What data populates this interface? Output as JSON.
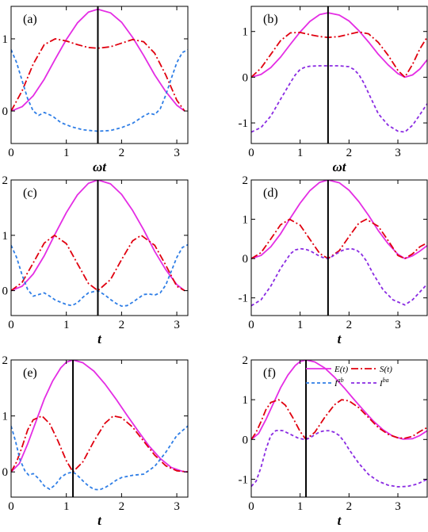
{
  "colors": {
    "E": "#e42de4",
    "S": "#e0000f",
    "Iab": "#2f7ee6",
    "Iba": "#8a2be2",
    "frame": "#000000",
    "marker": "#000000"
  },
  "legend": {
    "placement": "top-right of panel (f)",
    "entries": [
      {
        "series": "E",
        "label": "E(t)",
        "dash": "solid"
      },
      {
        "series": "S",
        "label": "S(t)",
        "dash": "dashdot"
      },
      {
        "series": "Iab",
        "label": "I^ab",
        "label_base": "I",
        "label_sup": "ab",
        "dash": "dashed"
      },
      {
        "series": "Iba",
        "label": "I^ba",
        "label_base": "I",
        "label_sup": "ba",
        "dash": "dashed"
      }
    ]
  },
  "chart_data": [
    {
      "type": "line",
      "label": "(a)",
      "xlabel": "ωt",
      "xlim": [
        0,
        3.2
      ],
      "ylim": [
        -0.45,
        1.45
      ],
      "xticks": [
        0,
        1,
        2,
        3
      ],
      "yticks": [
        0,
        1
      ],
      "marker_x": 1.571,
      "series": [
        {
          "key": "E",
          "x": [
            0,
            0.2,
            0.4,
            0.6,
            0.8,
            1.0,
            1.2,
            1.4,
            1.571,
            1.8,
            2.0,
            2.2,
            2.4,
            2.6,
            2.8,
            3.0,
            3.142
          ],
          "y": [
            0,
            0.06,
            0.21,
            0.44,
            0.72,
            0.99,
            1.22,
            1.37,
            1.41,
            1.36,
            1.23,
            1.02,
            0.77,
            0.5,
            0.27,
            0.08,
            0
          ]
        },
        {
          "key": "S",
          "x": [
            0,
            0.2,
            0.4,
            0.6,
            0.8,
            1.0,
            1.2,
            1.4,
            1.571,
            1.8,
            2.0,
            2.2,
            2.4,
            2.6,
            2.8,
            3.0,
            3.142
          ],
          "y": [
            0,
            0.28,
            0.65,
            0.92,
            1.0,
            0.97,
            0.92,
            0.88,
            0.87,
            0.89,
            0.94,
            0.99,
            0.96,
            0.8,
            0.5,
            0.15,
            0
          ]
        },
        {
          "key": "Iab",
          "x": [
            0,
            0.1,
            0.2,
            0.3,
            0.4,
            0.5,
            0.6,
            0.75,
            0.9,
            1.1,
            1.3,
            1.571,
            1.8,
            2.0,
            2.2,
            2.4,
            2.5,
            2.6,
            2.7,
            2.8,
            2.9,
            3.0,
            3.1,
            3.2
          ],
          "y": [
            0.85,
            0.67,
            0.42,
            0.17,
            0.0,
            -0.06,
            -0.02,
            -0.07,
            -0.16,
            -0.22,
            -0.26,
            -0.28,
            -0.27,
            -0.23,
            -0.17,
            -0.07,
            -0.03,
            -0.05,
            0.03,
            0.22,
            0.45,
            0.67,
            0.81,
            0.85
          ]
        }
      ]
    },
    {
      "type": "line",
      "label": "(b)",
      "xlabel": "ωt",
      "xlim": [
        0,
        3.6
      ],
      "ylim": [
        -1.45,
        1.55
      ],
      "xticks": [
        0,
        1,
        2,
        3
      ],
      "yticks": [
        -1,
        0,
        1
      ],
      "marker_x": 1.571,
      "series": [
        {
          "key": "E",
          "x": [
            0,
            0.2,
            0.4,
            0.6,
            0.8,
            1.0,
            1.2,
            1.4,
            1.571,
            1.8,
            2.0,
            2.2,
            2.4,
            2.6,
            2.8,
            3.0,
            3.142,
            3.3,
            3.45,
            3.6
          ],
          "y": [
            0,
            0.06,
            0.21,
            0.44,
            0.72,
            0.99,
            1.22,
            1.37,
            1.41,
            1.36,
            1.23,
            1.02,
            0.77,
            0.5,
            0.27,
            0.08,
            0,
            0.05,
            0.18,
            0.38
          ]
        },
        {
          "key": "S",
          "x": [
            0,
            0.2,
            0.4,
            0.6,
            0.8,
            1.0,
            1.2,
            1.4,
            1.571,
            1.8,
            2.0,
            2.2,
            2.4,
            2.6,
            2.8,
            3.0,
            3.142,
            3.3,
            3.45,
            3.6
          ],
          "y": [
            0,
            0.2,
            0.5,
            0.8,
            0.97,
            0.98,
            0.93,
            0.89,
            0.87,
            0.89,
            0.94,
            0.99,
            0.95,
            0.76,
            0.48,
            0.15,
            0,
            0.28,
            0.62,
            0.88
          ]
        },
        {
          "key": "Iba",
          "x": [
            0,
            0.2,
            0.4,
            0.6,
            0.8,
            0.9,
            1.0,
            1.1,
            1.2,
            1.4,
            1.571,
            1.8,
            2.0,
            2.1,
            2.2,
            2.3,
            2.4,
            2.6,
            2.8,
            3.0,
            3.142,
            3.3,
            3.45,
            3.6
          ],
          "y": [
            -1.2,
            -1.1,
            -0.85,
            -0.48,
            -0.12,
            0.05,
            0.17,
            0.22,
            0.24,
            0.25,
            0.25,
            0.25,
            0.23,
            0.17,
            0.06,
            -0.12,
            -0.35,
            -0.8,
            -1.05,
            -1.18,
            -1.2,
            -1.05,
            -0.82,
            -0.58
          ]
        }
      ]
    },
    {
      "type": "line",
      "label": "(c)",
      "xlabel": "t",
      "xlim": [
        0,
        3.2
      ],
      "ylim": [
        -0.45,
        2.0
      ],
      "xticks": [
        0,
        1,
        2,
        3
      ],
      "yticks": [
        0,
        1,
        2
      ],
      "marker_x": 1.571,
      "series": [
        {
          "key": "E",
          "x": [
            0,
            0.2,
            0.4,
            0.6,
            0.8,
            1.0,
            1.2,
            1.4,
            1.571,
            1.8,
            2.0,
            2.2,
            2.4,
            2.6,
            2.8,
            3.0,
            3.142
          ],
          "y": [
            0,
            0.08,
            0.3,
            0.63,
            1.03,
            1.41,
            1.73,
            1.94,
            2.0,
            1.93,
            1.74,
            1.45,
            1.1,
            0.71,
            0.38,
            0.11,
            0
          ]
        },
        {
          "key": "S",
          "x": [
            0,
            0.2,
            0.4,
            0.6,
            0.785,
            1.0,
            1.2,
            1.4,
            1.571,
            1.8,
            2.0,
            2.2,
            2.356,
            2.6,
            2.8,
            3.0,
            3.142
          ],
          "y": [
            0,
            0.15,
            0.5,
            0.86,
            1.0,
            0.85,
            0.49,
            0.13,
            0,
            0.2,
            0.56,
            0.9,
            1.0,
            0.82,
            0.46,
            0.08,
            0
          ]
        },
        {
          "key": "Iab",
          "x": [
            0,
            0.1,
            0.2,
            0.3,
            0.4,
            0.5,
            0.6,
            0.7,
            0.8,
            0.9,
            1.0,
            1.1,
            1.2,
            1.3,
            1.4,
            1.571,
            1.7,
            1.8,
            1.9,
            2.0,
            2.1,
            2.2,
            2.3,
            2.4,
            2.5,
            2.6,
            2.7,
            2.8,
            2.9,
            3.0,
            3.1,
            3.2
          ],
          "y": [
            0.82,
            0.6,
            0.28,
            0.02,
            -0.1,
            -0.07,
            -0.04,
            -0.1,
            -0.17,
            -0.21,
            -0.25,
            -0.27,
            -0.22,
            -0.12,
            -0.04,
            0.0,
            -0.08,
            -0.16,
            -0.23,
            -0.28,
            -0.27,
            -0.21,
            -0.14,
            -0.07,
            -0.06,
            -0.08,
            -0.04,
            0.1,
            0.35,
            0.6,
            0.78,
            0.83
          ]
        }
      ]
    },
    {
      "type": "line",
      "label": "(d)",
      "xlabel": "t",
      "xlim": [
        0,
        3.6
      ],
      "ylim": [
        -1.45,
        2.0
      ],
      "xticks": [
        0,
        1,
        2,
        3
      ],
      "yticks": [
        -1,
        0,
        1,
        2
      ],
      "marker_x": 1.571,
      "series": [
        {
          "key": "E",
          "x": [
            0,
            0.2,
            0.4,
            0.6,
            0.8,
            1.0,
            1.2,
            1.4,
            1.571,
            1.8,
            2.0,
            2.2,
            2.4,
            2.6,
            2.8,
            3.0,
            3.142,
            3.3,
            3.45,
            3.6
          ],
          "y": [
            0,
            0.08,
            0.3,
            0.63,
            1.03,
            1.41,
            1.73,
            1.94,
            2.0,
            1.93,
            1.74,
            1.45,
            1.1,
            0.71,
            0.38,
            0.11,
            0,
            0.07,
            0.19,
            0.33
          ]
        },
        {
          "key": "S",
          "x": [
            0,
            0.2,
            0.4,
            0.6,
            0.785,
            1.0,
            1.2,
            1.4,
            1.571,
            1.8,
            2.0,
            2.2,
            2.356,
            2.6,
            2.8,
            3.0,
            3.142,
            3.3,
            3.45,
            3.6
          ],
          "y": [
            0,
            0.15,
            0.5,
            0.86,
            1.0,
            0.85,
            0.49,
            0.13,
            0,
            0.2,
            0.56,
            0.9,
            1.0,
            0.82,
            0.46,
            0.08,
            0,
            0.12,
            0.3,
            0.4
          ]
        },
        {
          "key": "Iba",
          "x": [
            0,
            0.2,
            0.4,
            0.6,
            0.8,
            0.9,
            1.0,
            1.1,
            1.2,
            1.3,
            1.4,
            1.5,
            1.571,
            1.65,
            1.75,
            1.85,
            1.95,
            2.05,
            2.15,
            2.25,
            2.35,
            2.5,
            2.7,
            2.9,
            3.142,
            3.3,
            3.45,
            3.6
          ],
          "y": [
            -1.2,
            -1.05,
            -0.7,
            -0.25,
            0.12,
            0.22,
            0.25,
            0.24,
            0.2,
            0.13,
            0.06,
            0.01,
            0.0,
            0.05,
            0.13,
            0.2,
            0.24,
            0.25,
            0.22,
            0.12,
            -0.05,
            -0.4,
            -0.8,
            -1.05,
            -1.18,
            -1.05,
            -0.85,
            -0.65
          ]
        }
      ]
    },
    {
      "type": "line",
      "label": "(e)",
      "xlabel": "t",
      "xlim": [
        0,
        3.2
      ],
      "ylim": [
        -0.45,
        2.0
      ],
      "xticks": [
        0,
        1,
        2,
        3
      ],
      "yticks": [
        0,
        1,
        2
      ],
      "marker_x": 1.12,
      "series": [
        {
          "key": "E",
          "x": [
            0,
            0.15,
            0.3,
            0.45,
            0.6,
            0.75,
            0.9,
            1.0,
            1.12,
            1.3,
            1.5,
            1.7,
            1.9,
            2.1,
            2.3,
            2.5,
            2.7,
            2.9,
            3.1,
            3.2
          ],
          "y": [
            0,
            0.15,
            0.5,
            0.9,
            1.3,
            1.62,
            1.86,
            1.96,
            2.0,
            1.95,
            1.8,
            1.57,
            1.3,
            1.01,
            0.73,
            0.46,
            0.24,
            0.08,
            0.01,
            0
          ]
        },
        {
          "key": "S",
          "x": [
            0,
            0.1,
            0.2,
            0.3,
            0.4,
            0.56,
            0.7,
            0.85,
            1.0,
            1.12,
            1.3,
            1.5,
            1.7,
            1.85,
            2.0,
            2.2,
            2.4,
            2.6,
            2.8,
            3.0,
            3.2
          ],
          "y": [
            0,
            0.18,
            0.45,
            0.75,
            0.93,
            1.0,
            0.86,
            0.55,
            0.2,
            0,
            0.18,
            0.55,
            0.87,
            1.0,
            0.97,
            0.8,
            0.55,
            0.3,
            0.11,
            0.02,
            0
          ]
        },
        {
          "key": "Iab",
          "x": [
            0,
            0.08,
            0.16,
            0.25,
            0.32,
            0.4,
            0.5,
            0.6,
            0.7,
            0.8,
            0.9,
            1.0,
            1.12,
            1.2,
            1.3,
            1.4,
            1.5,
            1.6,
            1.7,
            1.8,
            1.9,
            2.0,
            2.2,
            2.4,
            2.6,
            2.8,
            3.0,
            3.2
          ],
          "y": [
            0.82,
            0.55,
            0.22,
            0.02,
            -0.06,
            -0.03,
            -0.12,
            -0.25,
            -0.31,
            -0.23,
            -0.1,
            -0.03,
            0.0,
            -0.06,
            -0.16,
            -0.25,
            -0.31,
            -0.32,
            -0.28,
            -0.22,
            -0.15,
            -0.1,
            -0.06,
            -0.04,
            0.1,
            0.35,
            0.65,
            0.82
          ]
        }
      ]
    },
    {
      "type": "line",
      "label": "(f)",
      "xlabel": "t",
      "xlim": [
        0,
        3.6
      ],
      "ylim": [
        -1.45,
        2.0
      ],
      "xticks": [
        0,
        1,
        2,
        3
      ],
      "yticks": [
        -1,
        0,
        1,
        2
      ],
      "marker_x": 1.12,
      "series": [
        {
          "key": "E",
          "x": [
            0,
            0.15,
            0.3,
            0.45,
            0.6,
            0.75,
            0.9,
            1.0,
            1.12,
            1.3,
            1.5,
            1.7,
            1.9,
            2.1,
            2.3,
            2.5,
            2.7,
            2.9,
            3.1,
            3.3,
            3.45,
            3.6
          ],
          "y": [
            0,
            0.15,
            0.5,
            0.9,
            1.3,
            1.62,
            1.86,
            1.96,
            2.0,
            1.95,
            1.8,
            1.57,
            1.3,
            1.01,
            0.73,
            0.46,
            0.24,
            0.08,
            0.01,
            0.02,
            0.1,
            0.22
          ]
        },
        {
          "key": "S",
          "x": [
            0,
            0.1,
            0.2,
            0.3,
            0.4,
            0.56,
            0.7,
            0.85,
            1.0,
            1.12,
            1.3,
            1.5,
            1.7,
            1.85,
            2.0,
            2.2,
            2.4,
            2.6,
            2.8,
            3.0,
            3.142,
            3.3,
            3.45,
            3.6
          ],
          "y": [
            0,
            0.18,
            0.45,
            0.75,
            0.93,
            1.0,
            0.86,
            0.55,
            0.2,
            0,
            0.18,
            0.55,
            0.87,
            1.0,
            0.97,
            0.8,
            0.55,
            0.3,
            0.13,
            0.04,
            0.03,
            0.08,
            0.2,
            0.3
          ]
        },
        {
          "key": "Iba",
          "x": [
            0,
            0.1,
            0.2,
            0.3,
            0.4,
            0.5,
            0.56,
            0.65,
            0.75,
            0.85,
            0.95,
            1.05,
            1.12,
            1.2,
            1.3,
            1.4,
            1.5,
            1.6,
            1.7,
            1.8,
            1.9,
            2.0,
            2.2,
            2.4,
            2.6,
            2.8,
            3.0,
            3.2,
            3.4,
            3.6
          ],
          "y": [
            -1.18,
            -1.05,
            -0.7,
            -0.25,
            0.1,
            0.22,
            0.23,
            0.22,
            0.16,
            0.1,
            0.04,
            0.01,
            0.0,
            0.04,
            0.12,
            0.19,
            0.22,
            0.22,
            0.18,
            0.1,
            -0.05,
            -0.25,
            -0.6,
            -0.88,
            -1.05,
            -1.15,
            -1.19,
            -1.18,
            -1.12,
            -1.0
          ]
        }
      ]
    }
  ]
}
